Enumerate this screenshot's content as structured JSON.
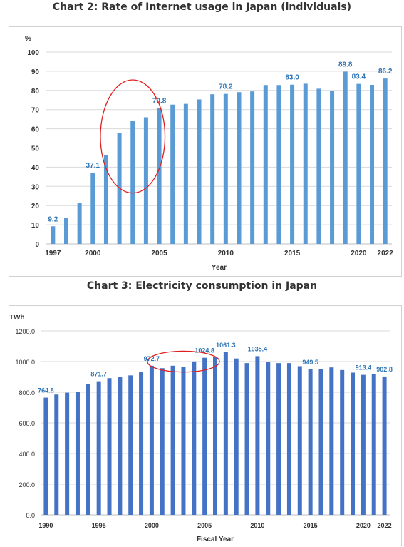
{
  "chart_data": [
    {
      "type": "bar",
      "title": "Chart 2: Rate of Internet usage in Japan (individuals)",
      "ylabel": "%",
      "xlabel": "Year",
      "ylim": [
        0,
        100
      ],
      "yticks": [
        "0",
        "10",
        "20",
        "30",
        "40",
        "50",
        "60",
        "70",
        "80",
        "90",
        "100"
      ],
      "xtick_labels": [
        "1997",
        "2000",
        "2005",
        "2010",
        "2015",
        "2020",
        "2022"
      ],
      "categories": [
        "1997",
        "1998",
        "1999",
        "2000",
        "2001",
        "2002",
        "2003",
        "2004",
        "2005",
        "2006",
        "2007",
        "2008",
        "2009",
        "2010",
        "2011",
        "2012",
        "2013",
        "2014",
        "2015",
        "2016",
        "2017",
        "2018",
        "2019",
        "2020",
        "2021",
        "2022"
      ],
      "values": [
        9.2,
        13.4,
        21.4,
        37.1,
        46.3,
        57.8,
        64.3,
        66.0,
        70.8,
        72.6,
        73.0,
        75.3,
        78.0,
        78.2,
        79.1,
        79.5,
        82.8,
        82.8,
        83.0,
        83.5,
        80.9,
        79.8,
        89.8,
        83.4,
        82.9,
        86.2
      ],
      "data_labels": [
        {
          "category": "1997",
          "text": "9.2"
        },
        {
          "category": "2000",
          "text": "37.1"
        },
        {
          "category": "2005",
          "text": "70.8"
        },
        {
          "category": "2010",
          "text": "78.2"
        },
        {
          "category": "2015",
          "text": "83.0"
        },
        {
          "category": "2019",
          "text": "89.8"
        },
        {
          "category": "2020",
          "text": "83.4"
        },
        {
          "category": "2022",
          "text": "86.2"
        }
      ],
      "annotation": "red circle around 2001–2005",
      "grid": true,
      "colors": {
        "bar": "#5b9bd5",
        "label": "#2e75b6",
        "annotation": "#e02020"
      }
    },
    {
      "type": "bar",
      "title": "Chart 3: Electricity consumption in Japan",
      "ylabel": "TWh",
      "xlabel": "Fiscal Year",
      "ylim": [
        0,
        1200
      ],
      "yticks": [
        "0.0",
        "200.0",
        "400.0",
        "600.0",
        "800.0",
        "1000.0",
        "1200.0"
      ],
      "xtick_labels": [
        "1990",
        "1995",
        "2000",
        "2005",
        "2010",
        "2015",
        "2020",
        "2022"
      ],
      "categories": [
        "1990",
        "1991",
        "1992",
        "1993",
        "1994",
        "1995",
        "1996",
        "1997",
        "1998",
        "1999",
        "2000",
        "2001",
        "2002",
        "2003",
        "2004",
        "2005",
        "2006",
        "2007",
        "2008",
        "2009",
        "2010",
        "2011",
        "2012",
        "2013",
        "2014",
        "2015",
        "2016",
        "2017",
        "2018",
        "2019",
        "2020",
        "2021",
        "2022"
      ],
      "values": [
        764.8,
        785,
        797,
        802,
        855,
        871.7,
        892,
        900,
        910,
        930,
        972.7,
        957,
        973,
        967,
        1001,
        1024.8,
        1028,
        1061.3,
        1020,
        990,
        1035.4,
        997,
        990,
        990,
        970,
        949.5,
        950,
        962,
        945,
        928,
        913.4,
        920,
        902.8
      ],
      "data_labels": [
        {
          "category": "1990",
          "text": "764.8"
        },
        {
          "category": "1995",
          "text": "871.7"
        },
        {
          "category": "2000",
          "text": "972.7"
        },
        {
          "category": "2005",
          "text": "1024.8"
        },
        {
          "category": "2007",
          "text": "1061.3"
        },
        {
          "category": "2010",
          "text": "1035.4"
        },
        {
          "category": "2015",
          "text": "949.5"
        },
        {
          "category": "2020",
          "text": "913.4"
        },
        {
          "category": "2022",
          "text": "902.8"
        }
      ],
      "annotation": "red ellipse around 2000–2006",
      "grid": true,
      "colors": {
        "bar": "#4472c4",
        "label": "#2e75b6",
        "annotation": "#e02020"
      }
    }
  ]
}
